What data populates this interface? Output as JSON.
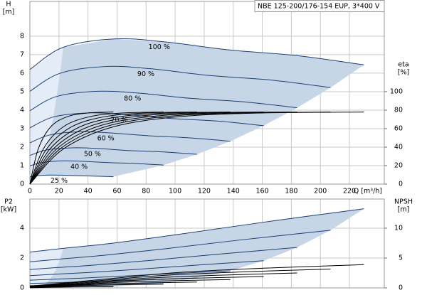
{
  "chart_data": [
    {
      "type": "line",
      "title": "NBE 125-200/176-154 EUP, 3*400 V",
      "ylabel": "H",
      "yunit": "[m]",
      "y2label": "eta",
      "y2unit": "[%]",
      "xlabel": "Q [m³/h]",
      "xlim": [
        0,
        244
      ],
      "xticks": [
        0,
        20,
        40,
        60,
        80,
        100,
        120,
        140,
        160,
        180,
        200,
        220
      ],
      "ylim": [
        0,
        9.88
      ],
      "yticks": [
        0,
        1,
        2,
        3,
        4,
        5,
        6,
        7,
        8
      ],
      "y2lim": [
        0,
        197.6
      ],
      "y2ticks": [
        0,
        20,
        40,
        60,
        80,
        100
      ],
      "grid": true,
      "shaded_area": true,
      "series": [
        {
          "name": "100 %",
          "color": "#1d3e73",
          "x": [
            0,
            23,
            58,
            92,
            138,
            184,
            230
          ],
          "values": [
            6.2,
            7.4,
            7.85,
            7.7,
            7.25,
            6.95,
            6.45
          ]
        },
        {
          "name": "90 %",
          "color": "#1d3e73",
          "x": [
            0,
            20.7,
            52.2,
            82.8,
            124.2,
            165.6,
            207
          ],
          "values": [
            5.02,
            5.99,
            6.36,
            6.24,
            5.87,
            5.63,
            5.22
          ]
        },
        {
          "name": "80 %",
          "color": "#1d3e73",
          "x": [
            0,
            18.4,
            46.4,
            73.6,
            110.4,
            147.2,
            184
          ],
          "values": [
            3.97,
            4.74,
            5.02,
            4.93,
            4.64,
            4.45,
            4.13
          ]
        },
        {
          "name": "70 %",
          "color": "#1d3e73",
          "x": [
            0,
            16.1,
            40.6,
            64.4,
            96.6,
            128.8,
            161
          ],
          "values": [
            3.04,
            3.63,
            3.85,
            3.77,
            3.55,
            3.41,
            3.16
          ]
        },
        {
          "name": "60 %",
          "color": "#1d3e73",
          "x": [
            0,
            13.8,
            34.8,
            55.2,
            82.8,
            110.4,
            138
          ],
          "values": [
            2.23,
            2.66,
            2.83,
            2.77,
            2.61,
            2.5,
            2.32
          ]
        },
        {
          "name": "50 %",
          "color": "#1d3e73",
          "x": [
            0,
            11.5,
            29,
            46,
            69,
            92,
            115
          ],
          "values": [
            1.55,
            1.85,
            1.96,
            1.93,
            1.81,
            1.74,
            1.61
          ]
        },
        {
          "name": "40 %",
          "color": "#1d3e73",
          "x": [
            0,
            9.2,
            23.2,
            36.8,
            55.2,
            73.6,
            92
          ],
          "values": [
            0.99,
            1.18,
            1.26,
            1.23,
            1.16,
            1.11,
            1.03
          ]
        },
        {
          "name": "25 %",
          "color": "#1d3e73",
          "x": [
            0,
            5.75,
            14.5,
            23,
            34.5,
            46,
            57.5
          ],
          "values": [
            0.39,
            0.46,
            0.49,
            0.48,
            0.45,
            0.43,
            0.4
          ]
        },
        {
          "axis": "y2",
          "color": "#000000",
          "x": [
            0,
            23,
            57.5,
            103.5,
            161,
            230
          ],
          "values": [
            0,
            38,
            62,
            73,
            77,
            78
          ]
        },
        {
          "axis": "y2",
          "color": "#000000",
          "x": [
            0,
            20.7,
            51.75,
            93.15,
            144.9,
            207
          ],
          "values": [
            0,
            38,
            62,
            73,
            77,
            78
          ]
        },
        {
          "axis": "y2",
          "color": "#000000",
          "x": [
            0,
            18.4,
            46,
            82.8,
            128.8,
            184
          ],
          "values": [
            0,
            38,
            62,
            73,
            77,
            78
          ]
        },
        {
          "axis": "y2",
          "color": "#000000",
          "x": [
            0,
            16.1,
            40.25,
            72.45,
            112.7,
            161
          ],
          "values": [
            0,
            38,
            62,
            73,
            77,
            78
          ]
        },
        {
          "axis": "y2",
          "color": "#000000",
          "x": [
            0,
            13.8,
            34.5,
            62.1,
            96.6,
            138
          ],
          "values": [
            0,
            38,
            62,
            73,
            77,
            78
          ]
        },
        {
          "axis": "y2",
          "color": "#000000",
          "x": [
            0,
            11.5,
            28.75,
            51.75,
            80.5,
            115
          ],
          "values": [
            0,
            38,
            62,
            73,
            77,
            78
          ]
        },
        {
          "axis": "y2",
          "color": "#000000",
          "x": [
            0,
            9.2,
            23,
            41.4,
            64.4,
            92
          ],
          "values": [
            0,
            38,
            62,
            73,
            77,
            78
          ]
        },
        {
          "axis": "y2",
          "color": "#000000",
          "x": [
            0,
            5.75,
            14.38,
            25.88,
            40.25,
            57.5
          ],
          "values": [
            0,
            38,
            62,
            73,
            77,
            78
          ]
        }
      ]
    },
    {
      "type": "line",
      "ylabel": "P2",
      "yunit": "[kW]",
      "y2label": "NPSH",
      "y2unit": "[m]",
      "xlim": [
        0,
        244
      ],
      "xticks": [
        0,
        20,
        40,
        60,
        80,
        100,
        120,
        140,
        160,
        180,
        200,
        220
      ],
      "ylim": [
        0,
        5.95
      ],
      "yticks": [
        0,
        2,
        4
      ],
      "y2lim": [
        0,
        14.88
      ],
      "y2ticks": [
        0,
        5,
        10
      ],
      "grid": true,
      "shaded_area": true,
      "series": [
        {
          "color": "#1d3e73",
          "x": [
            0,
            23,
            57.5,
            103.5,
            161,
            230
          ],
          "values": [
            2.4,
            2.65,
            3.0,
            3.6,
            4.4,
            5.3
          ]
        },
        {
          "color": "#1d3e73",
          "x": [
            0,
            20.7,
            51.75,
            93.15,
            144.9,
            207
          ],
          "values": [
            1.75,
            1.93,
            2.19,
            2.62,
            3.21,
            3.86
          ]
        },
        {
          "color": "#1d3e73",
          "x": [
            0,
            18.4,
            46,
            82.8,
            128.8,
            184
          ],
          "values": [
            1.23,
            1.36,
            1.54,
            1.84,
            2.25,
            2.71
          ]
        },
        {
          "color": "#1d3e73",
          "x": [
            0,
            16.1,
            40.25,
            72.45,
            112.7,
            161
          ],
          "values": [
            0.82,
            0.91,
            1.03,
            1.23,
            1.51,
            1.82
          ]
        },
        {
          "color": "#1d3e73",
          "x": [
            0,
            13.8,
            34.5,
            62.1,
            96.6,
            138
          ],
          "values": [
            0.52,
            0.57,
            0.65,
            0.78,
            0.95,
            1.14
          ]
        },
        {
          "color": "#1d3e73",
          "x": [
            0,
            11.5,
            28.75,
            51.75,
            80.5,
            115
          ],
          "values": [
            0.3,
            0.33,
            0.38,
            0.45,
            0.55,
            0.66
          ]
        },
        {
          "color": "#1d3e73",
          "x": [
            0,
            9.2,
            23,
            41.4,
            64.4,
            92
          ],
          "values": [
            0.15,
            0.17,
            0.19,
            0.23,
            0.28,
            0.34
          ]
        },
        {
          "color": "#1d3e73",
          "x": [
            0,
            5.75,
            14.38,
            25.88,
            40.25,
            57.5
          ],
          "values": [
            0.04,
            0.04,
            0.05,
            0.06,
            0.07,
            0.08
          ]
        },
        {
          "axis": "y2",
          "color": "#000000",
          "x": [
            0,
            23,
            57.5,
            103.5,
            161,
            230
          ],
          "values": [
            0.3,
            0.8,
            1.6,
            2.6,
            3.3,
            3.9
          ]
        },
        {
          "axis": "y2",
          "color": "#000000",
          "x": [
            0,
            20.7,
            51.75,
            93.15,
            144.9,
            207
          ],
          "values": [
            0.24,
            0.65,
            1.3,
            2.11,
            2.67,
            3.16
          ]
        },
        {
          "axis": "y2",
          "color": "#000000",
          "x": [
            0,
            18.4,
            46,
            82.8,
            128.8,
            184
          ],
          "values": [
            0.19,
            0.51,
            1.02,
            1.66,
            2.11,
            2.5
          ]
        },
        {
          "axis": "y2",
          "color": "#000000",
          "x": [
            0,
            16.1,
            40.25,
            72.45,
            112.7,
            161
          ],
          "values": [
            0.15,
            0.39,
            0.78,
            1.27,
            1.62,
            1.91
          ]
        },
        {
          "axis": "y2",
          "color": "#000000",
          "x": [
            0,
            13.8,
            34.5,
            62.1,
            96.6,
            138
          ],
          "values": [
            0.11,
            0.29,
            0.58,
            0.94,
            1.19,
            1.4
          ]
        },
        {
          "axis": "y2",
          "color": "#000000",
          "x": [
            0,
            11.5,
            28.75,
            51.75,
            80.5,
            115
          ],
          "values": [
            0.08,
            0.2,
            0.4,
            0.65,
            0.83,
            0.98
          ]
        },
        {
          "axis": "y2",
          "color": "#000000",
          "x": [
            0,
            9.2,
            23,
            41.4,
            64.4,
            92
          ],
          "values": [
            0.05,
            0.13,
            0.26,
            0.42,
            0.53,
            0.62
          ]
        },
        {
          "axis": "y2",
          "color": "#000000",
          "x": [
            0,
            5.75,
            14.38,
            25.88,
            40.25,
            57.5
          ],
          "values": [
            0.02,
            0.05,
            0.1,
            0.16,
            0.21,
            0.24
          ]
        }
      ]
    }
  ]
}
